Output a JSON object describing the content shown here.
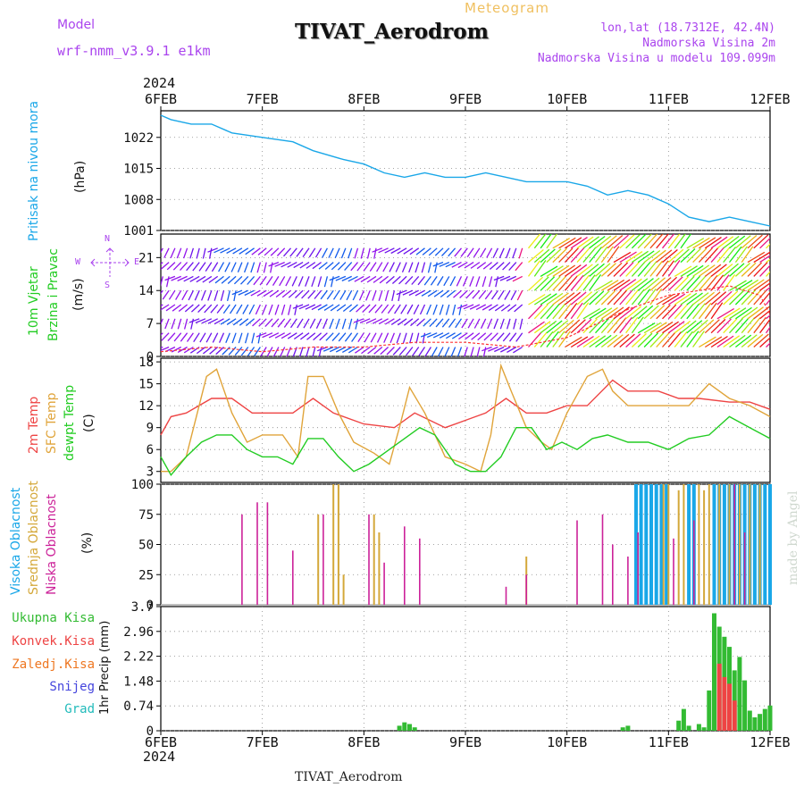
{
  "header": {
    "model_label": "Model",
    "model_name": "wrf-nmm_v3.9.1 e1km",
    "meteogram_label": "Meteogram",
    "station_title": "TIVAT_Aerodrom",
    "lonlat": "lon,lat (18.7312E, 42.4N)",
    "altitude": "Nadmorska Visina 2m",
    "model_altitude": "Nadmorska Visina u modelu 109.099m",
    "footer_station": "TIVAT_Aerodrom",
    "watermark": "made by Angel",
    "year_top": "2024",
    "year_bottom": "2024"
  },
  "colors": {
    "pressure": "#1aa7e8",
    "temp2m": "#ee4444",
    "sfc_temp": "#e0a43a",
    "dewpt": "#22cc22",
    "high_cloud": "#1aa7e8",
    "mid_cloud": "#d4a83a",
    "low_cloud": "#cc2299",
    "precip_total": "#33bb33",
    "precip_conv": "#ee4444",
    "precip_frozen": "#ee7722",
    "snow": "#4444dd",
    "hail": "#22bbbb",
    "wind_label": "#22cc22",
    "dir_label": "#aa44ee"
  },
  "panel_labels": {
    "pressure": [
      "Pritisak na nivou mora",
      "(hPa)"
    ],
    "wind": [
      "10m Vjetar",
      "Brzina i Pravac",
      "(m/s)"
    ],
    "compass": [
      "N",
      "S",
      "W",
      "E"
    ],
    "temp": [
      "2m Temp",
      "SFC Temp",
      "dewpt Temp",
      "(C)"
    ],
    "cloud": [
      "Visoka Oblacnost",
      "Srednja Oblacnost",
      "Niska Oblacnost",
      "(%)"
    ],
    "precip_axis": "1hr Precip (mm)",
    "precip_legend": [
      "Ukupna Kisa",
      "Konvek.Kisa",
      "Zaledj.Kisa",
      "Snijeg",
      "Grad"
    ]
  },
  "chart_data": [
    {
      "type": "line",
      "panel": "pressure",
      "x_categories": [
        "6FEB",
        "7FEB",
        "8FEB",
        "9FEB",
        "10FEB",
        "11FEB",
        "12FEB"
      ],
      "ylabel": "(hPa)",
      "yticks": [
        1001,
        1008,
        1015,
        1022
      ],
      "ylim": [
        1001,
        1028
      ],
      "series": [
        {
          "name": "Pritisak na nivou mora",
          "x": [
            0,
            0.1,
            0.3,
            0.5,
            0.7,
            1.0,
            1.3,
            1.5,
            1.8,
            2.0,
            2.2,
            2.4,
            2.6,
            2.8,
            3.0,
            3.2,
            3.4,
            3.6,
            3.8,
            4.0,
            4.2,
            4.4,
            4.6,
            4.8,
            5.0,
            5.2,
            5.4,
            5.6,
            5.8,
            6.0
          ],
          "values": [
            1027,
            1026,
            1025,
            1025,
            1023,
            1022,
            1021,
            1019,
            1017,
            1016,
            1014,
            1013,
            1014,
            1013,
            1013,
            1014,
            1013,
            1012,
            1012,
            1012,
            1011,
            1009,
            1010,
            1009,
            1007,
            1004,
            1003,
            1004,
            1003,
            1002
          ]
        }
      ]
    },
    {
      "type": "line",
      "panel": "wind",
      "x_categories": [
        "6FEB",
        "7FEB",
        "8FEB",
        "9FEB",
        "10FEB",
        "11FEB",
        "12FEB"
      ],
      "ylabel": "(m/s)",
      "yticks": [
        0,
        7,
        14,
        21
      ],
      "ylim": [
        0,
        26
      ],
      "series": [
        {
          "name": "10m Vjetar",
          "x": [
            0,
            0.5,
            1.0,
            1.5,
            2.0,
            2.5,
            3.0,
            3.5,
            4.0,
            4.3,
            4.6,
            5.0,
            5.3,
            5.6,
            5.9,
            6.0
          ],
          "values": [
            1,
            2,
            1,
            2,
            2,
            3,
            3,
            2,
            4,
            7,
            10,
            13,
            14,
            15,
            13,
            9
          ]
        }
      ]
    },
    {
      "type": "line",
      "panel": "temperature",
      "x_categories": [
        "6FEB",
        "7FEB",
        "8FEB",
        "9FEB",
        "10FEB",
        "11FEB",
        "12FEB"
      ],
      "ylabel": "(C)",
      "yticks": [
        3,
        6,
        9,
        12,
        15,
        18
      ],
      "ylim": [
        1.5,
        18.5
      ],
      "series": [
        {
          "name": "2m Temp",
          "x": [
            0,
            0.1,
            0.25,
            0.5,
            0.7,
            0.9,
            1.1,
            1.3,
            1.5,
            1.7,
            2.0,
            2.3,
            2.5,
            2.8,
            3.0,
            3.2,
            3.4,
            3.6,
            3.8,
            4.0,
            4.2,
            4.45,
            4.6,
            4.9,
            5.1,
            5.3,
            5.6,
            5.8,
            6.0
          ],
          "values": [
            8,
            10.5,
            11,
            13,
            13,
            11,
            11,
            11,
            13,
            11,
            9.5,
            9,
            11,
            9,
            10,
            11,
            13,
            11,
            11,
            12,
            12,
            15.5,
            14,
            14,
            13,
            13,
            12.5,
            12.5,
            11.5
          ]
        },
        {
          "name": "SFC Temp",
          "x": [
            0,
            0.1,
            0.25,
            0.45,
            0.55,
            0.7,
            0.85,
            1.0,
            1.2,
            1.35,
            1.45,
            1.6,
            1.75,
            1.9,
            2.1,
            2.25,
            2.35,
            2.45,
            2.6,
            2.8,
            3.0,
            3.15,
            3.25,
            3.35,
            3.45,
            3.6,
            3.75,
            3.85,
            4.0,
            4.2,
            4.35,
            4.45,
            4.6,
            4.8,
            5.0,
            5.2,
            5.4,
            5.6,
            5.8,
            6.0
          ],
          "values": [
            3,
            3,
            5,
            16,
            17,
            11,
            7,
            8,
            8,
            5,
            16,
            16,
            11,
            7,
            5.5,
            4,
            9,
            14.5,
            11,
            5,
            4,
            3,
            8,
            17.5,
            14,
            9,
            7,
            6,
            11,
            16,
            17,
            14,
            12,
            12,
            12,
            12,
            15,
            13,
            12,
            10.5
          ]
        },
        {
          "name": "dewpt Temp",
          "x": [
            0,
            0.1,
            0.25,
            0.4,
            0.55,
            0.7,
            0.85,
            1.0,
            1.15,
            1.3,
            1.45,
            1.6,
            1.75,
            1.9,
            2.05,
            2.25,
            2.4,
            2.55,
            2.7,
            2.9,
            3.05,
            3.2,
            3.35,
            3.5,
            3.65,
            3.8,
            3.95,
            4.1,
            4.25,
            4.4,
            4.6,
            4.8,
            5.0,
            5.2,
            5.4,
            5.6,
            5.8,
            6.0
          ],
          "values": [
            5,
            2.5,
            5,
            7,
            8,
            8,
            6,
            5,
            5,
            4,
            7.5,
            7.5,
            5,
            3,
            4,
            6,
            7.5,
            9,
            8,
            4,
            3,
            3,
            5,
            9,
            9,
            6,
            7,
            6,
            7.5,
            8,
            7,
            7,
            6,
            7.5,
            8,
            10.5,
            9,
            7.5
          ]
        }
      ]
    },
    {
      "type": "bar",
      "panel": "cloud",
      "x_categories": [
        "6FEB",
        "7FEB",
        "8FEB",
        "9FEB",
        "10FEB",
        "11FEB",
        "12FEB"
      ],
      "ylabel": "(%)",
      "yticks": [
        0,
        25,
        50,
        75,
        100
      ],
      "ylim": [
        0,
        100
      ],
      "series": [
        {
          "name": "Visoka Oblacnost",
          "x": [
            4.68,
            4.73,
            4.78,
            4.83,
            4.88,
            4.93,
            4.98,
            5.2,
            5.25,
            5.45,
            5.5,
            5.55,
            5.6,
            5.65,
            5.7,
            5.75,
            5.8,
            5.85,
            5.9,
            5.95,
            6.0
          ],
          "values": [
            100,
            100,
            100,
            100,
            100,
            100,
            100,
            100,
            100,
            100,
            100,
            100,
            100,
            100,
            100,
            100,
            100,
            100,
            100,
            100,
            100
          ]
        },
        {
          "name": "Srednja Oblacnost",
          "x": [
            1.55,
            1.7,
            1.75,
            1.8,
            2.1,
            2.15,
            3.6,
            4.95,
            5.0,
            5.1,
            5.15,
            5.3,
            5.35,
            5.4,
            5.5,
            5.6,
            5.7,
            5.8,
            5.9
          ],
          "values": [
            75,
            100,
            100,
            25,
            75,
            60,
            40,
            100,
            100,
            95,
            100,
            100,
            95,
            100,
            100,
            100,
            100,
            100,
            100
          ]
        },
        {
          "name": "Niska Oblacnost",
          "x": [
            0.8,
            0.95,
            1.05,
            1.3,
            1.6,
            2.05,
            2.2,
            2.4,
            2.55,
            3.4,
            3.6,
            4.1,
            4.35,
            4.45,
            4.6,
            4.7,
            5.05,
            5.25,
            5.65,
            5.75
          ],
          "values": [
            75,
            85,
            85,
            45,
            75,
            75,
            35,
            65,
            55,
            15,
            25,
            70,
            75,
            50,
            40,
            60,
            55,
            70,
            100,
            60
          ]
        }
      ]
    },
    {
      "type": "bar",
      "panel": "precipitation",
      "x_categories": [
        "6FEB",
        "7FEB",
        "8FEB",
        "9FEB",
        "10FEB",
        "11FEB",
        "12FEB"
      ],
      "ylabel": "1hr Precip (mm)",
      "yticks": [
        0,
        0.74,
        1.48,
        2.22,
        2.96,
        3.7
      ],
      "ylim": [
        0,
        3.7
      ],
      "series": [
        {
          "name": "Ukupna Kisa",
          "x": [
            2.35,
            2.4,
            2.45,
            2.5,
            4.55,
            4.6,
            5.1,
            5.15,
            5.2,
            5.3,
            5.35,
            5.4,
            5.45,
            5.5,
            5.55,
            5.6,
            5.65,
            5.7,
            5.75,
            5.8,
            5.85,
            5.9,
            5.95,
            6.0
          ],
          "values": [
            0.15,
            0.25,
            0.2,
            0.1,
            0.1,
            0.15,
            0.3,
            0.65,
            0.15,
            0.2,
            0.1,
            1.2,
            3.5,
            3.1,
            2.8,
            2.5,
            1.8,
            2.2,
            1.5,
            0.6,
            0.4,
            0.5,
            0.65,
            0.75
          ]
        },
        {
          "name": "Konvek.Kisa",
          "x": [
            5.5,
            5.55,
            5.6,
            5.65
          ],
          "values": [
            2.0,
            1.6,
            1.4,
            0.9
          ]
        }
      ]
    }
  ]
}
